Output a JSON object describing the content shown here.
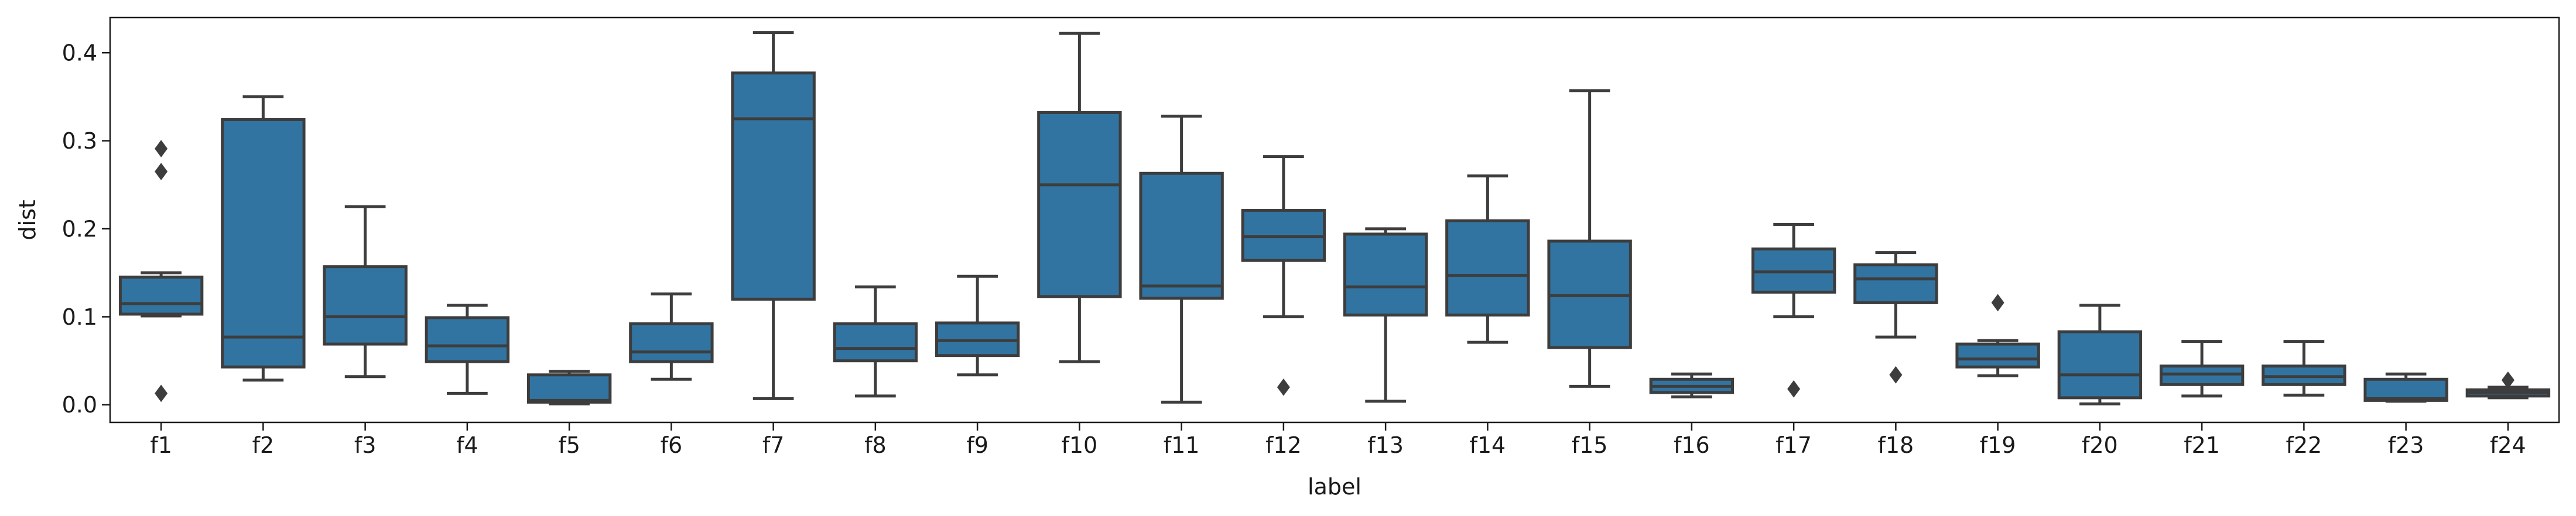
{
  "chart_data": {
    "type": "box",
    "xlabel": "label",
    "ylabel": "dist",
    "ylim": [
      -0.02,
      0.44
    ],
    "yticks": [
      0.0,
      0.1,
      0.2,
      0.3,
      0.4
    ],
    "ytick_labels": [
      "0.0",
      "0.1",
      "0.2",
      "0.3",
      "0.4"
    ],
    "grid": false,
    "legend": "none",
    "box_color": "#3274a1",
    "edge_color": "#3d3d3d",
    "categories": [
      "f1",
      "f2",
      "f3",
      "f4",
      "f5",
      "f6",
      "f7",
      "f8",
      "f9",
      "f10",
      "f11",
      "f12",
      "f13",
      "f14",
      "f15",
      "f16",
      "f17",
      "f18",
      "f19",
      "f20",
      "f21",
      "f22",
      "f23",
      "f24"
    ],
    "boxes": [
      {
        "min": 0.101,
        "q1": 0.103,
        "median": 0.115,
        "q3": 0.145,
        "max": 0.15,
        "fliers": [
          0.291,
          0.265,
          0.013
        ]
      },
      {
        "min": 0.028,
        "q1": 0.043,
        "median": 0.077,
        "q3": 0.324,
        "max": 0.35,
        "fliers": []
      },
      {
        "min": 0.032,
        "q1": 0.069,
        "median": 0.1,
        "q3": 0.157,
        "max": 0.225,
        "fliers": []
      },
      {
        "min": 0.013,
        "q1": 0.049,
        "median": 0.067,
        "q3": 0.099,
        "max": 0.113,
        "fliers": []
      },
      {
        "min": 0.001,
        "q1": 0.003,
        "median": 0.005,
        "q3": 0.034,
        "max": 0.038,
        "fliers": []
      },
      {
        "min": 0.029,
        "q1": 0.049,
        "median": 0.06,
        "q3": 0.092,
        "max": 0.126,
        "fliers": []
      },
      {
        "min": 0.007,
        "q1": 0.12,
        "median": 0.325,
        "q3": 0.377,
        "max": 0.423,
        "fliers": []
      },
      {
        "min": 0.01,
        "q1": 0.05,
        "median": 0.064,
        "q3": 0.092,
        "max": 0.134,
        "fliers": []
      },
      {
        "min": 0.034,
        "q1": 0.056,
        "median": 0.073,
        "q3": 0.093,
        "max": 0.146,
        "fliers": []
      },
      {
        "min": 0.049,
        "q1": 0.123,
        "median": 0.25,
        "q3": 0.332,
        "max": 0.422,
        "fliers": []
      },
      {
        "min": 0.003,
        "q1": 0.121,
        "median": 0.135,
        "q3": 0.263,
        "max": 0.328,
        "fliers": []
      },
      {
        "min": 0.1,
        "q1": 0.164,
        "median": 0.191,
        "q3": 0.221,
        "max": 0.282,
        "fliers": [
          0.02
        ]
      },
      {
        "min": 0.004,
        "q1": 0.102,
        "median": 0.134,
        "q3": 0.194,
        "max": 0.2,
        "fliers": []
      },
      {
        "min": 0.071,
        "q1": 0.102,
        "median": 0.147,
        "q3": 0.209,
        "max": 0.26,
        "fliers": []
      },
      {
        "min": 0.021,
        "q1": 0.065,
        "median": 0.124,
        "q3": 0.186,
        "max": 0.357,
        "fliers": []
      },
      {
        "min": 0.009,
        "q1": 0.014,
        "median": 0.021,
        "q3": 0.029,
        "max": 0.035,
        "fliers": []
      },
      {
        "min": 0.1,
        "q1": 0.128,
        "median": 0.151,
        "q3": 0.177,
        "max": 0.205,
        "fliers": [
          0.018
        ]
      },
      {
        "min": 0.077,
        "q1": 0.116,
        "median": 0.143,
        "q3": 0.159,
        "max": 0.173,
        "fliers": [
          0.034
        ]
      },
      {
        "min": 0.033,
        "q1": 0.043,
        "median": 0.052,
        "q3": 0.069,
        "max": 0.073,
        "fliers": [
          0.116
        ]
      },
      {
        "min": 0.001,
        "q1": 0.008,
        "median": 0.034,
        "q3": 0.083,
        "max": 0.113,
        "fliers": []
      },
      {
        "min": 0.01,
        "q1": 0.023,
        "median": 0.035,
        "q3": 0.044,
        "max": 0.072,
        "fliers": []
      },
      {
        "min": 0.011,
        "q1": 0.023,
        "median": 0.032,
        "q3": 0.044,
        "max": 0.072,
        "fliers": []
      },
      {
        "min": 0.004,
        "q1": 0.005,
        "median": 0.007,
        "q3": 0.029,
        "max": 0.035,
        "fliers": []
      },
      {
        "min": 0.008,
        "q1": 0.01,
        "median": 0.014,
        "q3": 0.017,
        "max": 0.02,
        "fliers": [
          0.028
        ]
      }
    ]
  }
}
